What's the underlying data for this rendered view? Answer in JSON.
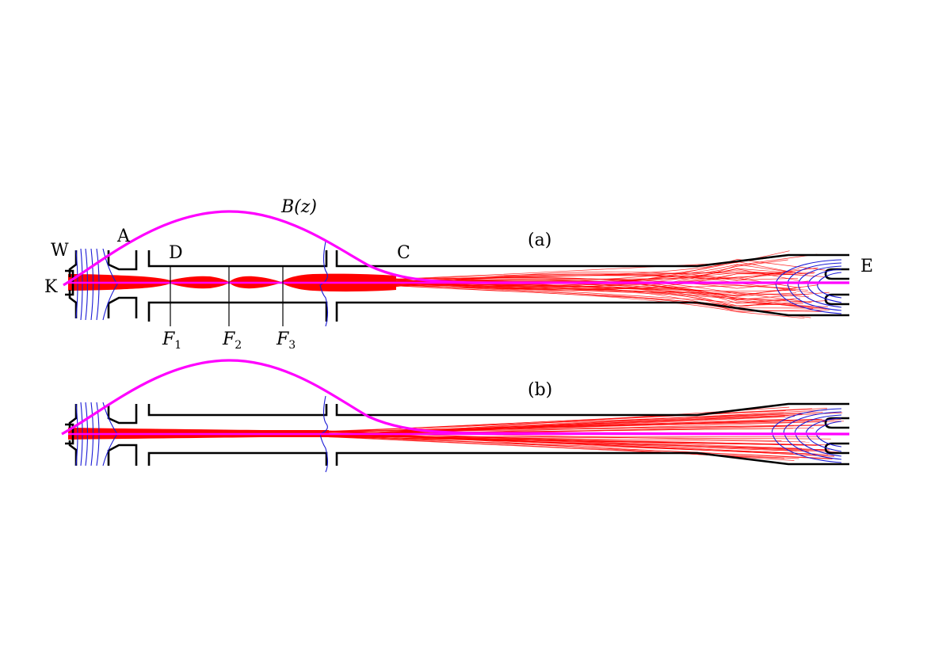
{
  "labels": {
    "W": "W",
    "A": "A",
    "K": "K",
    "D": "D",
    "C": "C",
    "E": "E",
    "bfield": "B(z)",
    "panel_a": "(a)",
    "panel_b": "(b)",
    "F1": "F",
    "F1_sub": "1",
    "F2": "F",
    "F2_sub": "2",
    "F3": "F",
    "F3_sub": "3"
  },
  "colors": {
    "walls": "#000000",
    "equipotentials": "#1a1ad6",
    "trajectories": "#ff0000",
    "magnetic_field": "#ff00ff"
  }
}
